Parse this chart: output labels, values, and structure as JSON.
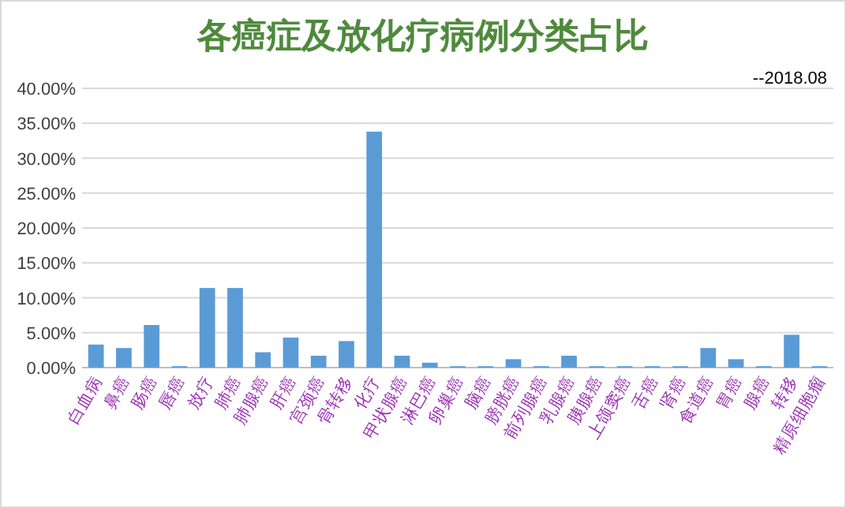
{
  "chart_data": {
    "type": "bar",
    "title": "各癌症及放化疗病例分类占比",
    "annotations": [
      "--2018.08"
    ],
    "categories": [
      "白血病",
      "鼻癌",
      "肠癌",
      "唇癌",
      "放疗",
      "肺癌",
      "肺腺癌",
      "肝癌",
      "宫颈癌",
      "骨转移",
      "化疗",
      "甲状腺癌",
      "淋巴癌",
      "卵巢癌",
      "脑癌",
      "膀胱癌",
      "前列腺癌",
      "乳腺癌",
      "胰腺癌",
      "上颌窦癌",
      "舌癌",
      "肾癌",
      "食道癌",
      "胃癌",
      "腺癌",
      "转移",
      "精原细胞瘤"
    ],
    "values": [
      3.3,
      2.8,
      6.1,
      0.2,
      11.4,
      11.4,
      2.2,
      4.3,
      1.7,
      3.8,
      33.8,
      1.7,
      0.7,
      0.2,
      0.2,
      1.2,
      0.2,
      1.7,
      0.2,
      0.2,
      0.2,
      0.2,
      2.8,
      1.2,
      0.2,
      4.7,
      0.2
    ],
    "color": "#5b9bd5",
    "ylim": [
      0,
      40
    ],
    "yticks": [
      {
        "value": 0,
        "label": "0.00%"
      },
      {
        "value": 5,
        "label": "5.00%"
      },
      {
        "value": 10,
        "label": "10.00%"
      },
      {
        "value": 15,
        "label": "15.00%"
      },
      {
        "value": 20,
        "label": "20.00%"
      },
      {
        "value": 25,
        "label": "25.00%"
      },
      {
        "value": 30,
        "label": "30.00%"
      },
      {
        "value": 35,
        "label": "35.00%"
      },
      {
        "value": 40,
        "label": "40.00%"
      }
    ],
    "grid": "y"
  }
}
